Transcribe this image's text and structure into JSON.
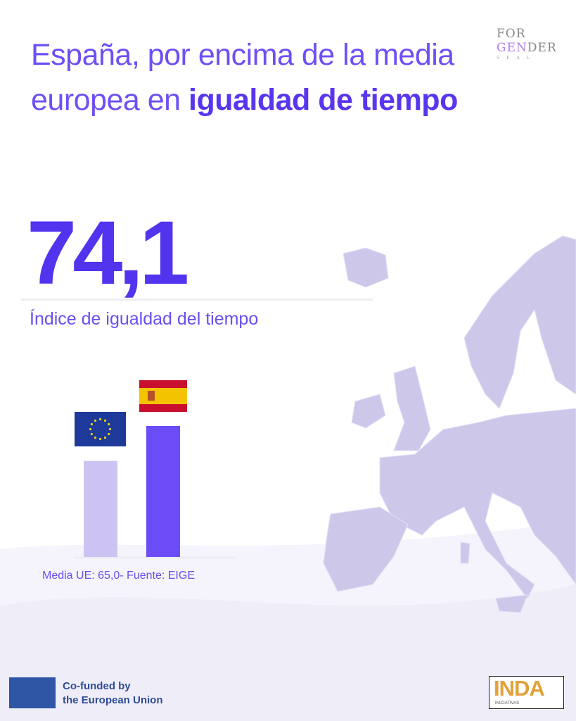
{
  "header": {
    "title_light": "España, por encima de la media europea en ",
    "title_bold": "igualdad de tiempo"
  },
  "logo": {
    "line1": "FOR",
    "line2_a": "GEN",
    "line2_b": "DER",
    "line3": "SEAL"
  },
  "headline": {
    "value": "74,1",
    "label": "Índice de igualdad del tiempo"
  },
  "chart_data": {
    "type": "bar",
    "categories": [
      "UE",
      "España"
    ],
    "values": [
      65.0,
      74.1
    ],
    "colors": [
      "#cdc3f2",
      "#6c4cf7"
    ],
    "category_icons": [
      "eu-flag",
      "spain-flag"
    ],
    "note": "Media UE: 65,0- Fuente: EIGE"
  },
  "footer": {
    "eu_text_1": "Co-funded by",
    "eu_text_2": "the European Union",
    "partner_logo": "INDA",
    "partner_sub": "INICIATIVAS"
  },
  "colors": {
    "accent": "#5a35f0",
    "map": "#cdc7ea",
    "wave": "#f3f1fb"
  }
}
